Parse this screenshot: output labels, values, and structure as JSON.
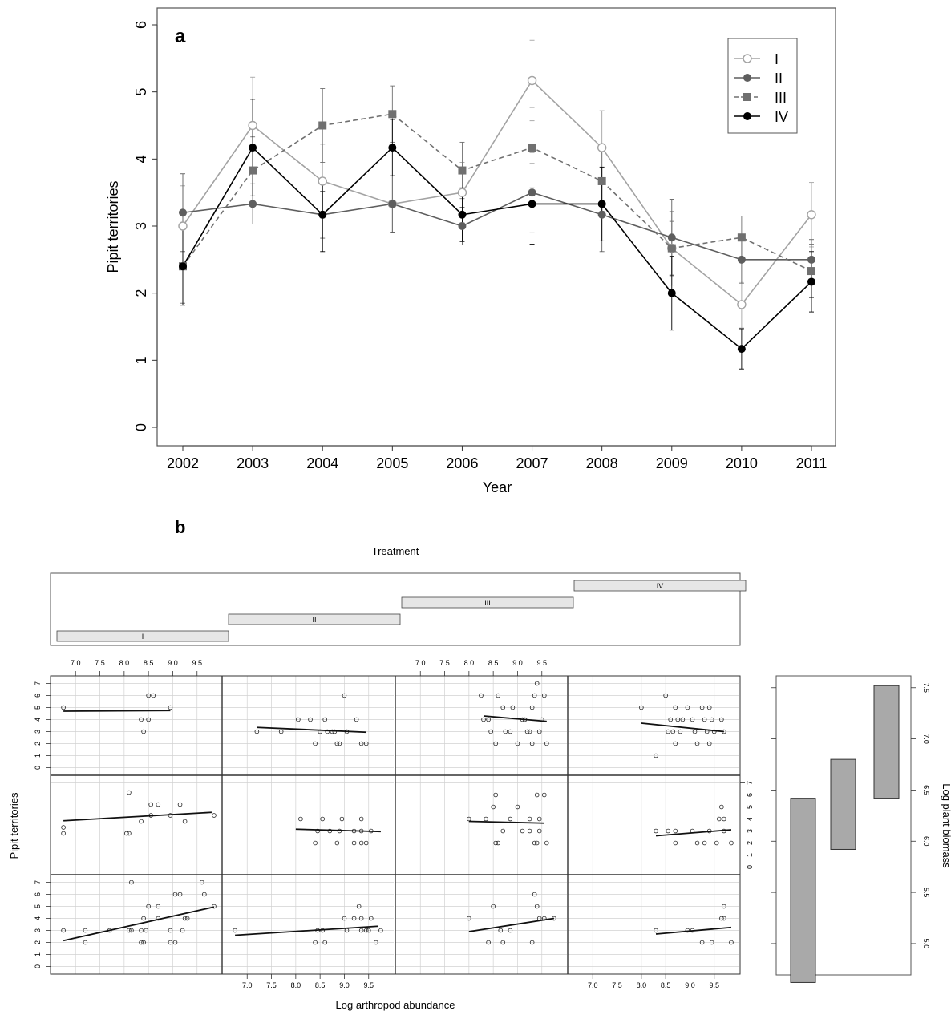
{
  "panel_a": {
    "label": "a"
  },
  "panel_b": {
    "label": "b"
  },
  "chart_data": [
    {
      "type": "line",
      "xlabel": "Year",
      "ylabel": "Pipit territories",
      "x": [
        2002,
        2003,
        2004,
        2005,
        2006,
        2007,
        2008,
        2009,
        2010,
        2011
      ],
      "xlim": [
        2002,
        2011
      ],
      "ylim": [
        0,
        6
      ],
      "yticks": [
        0,
        1,
        2,
        3,
        4,
        5,
        6
      ],
      "legend_position": "top-right",
      "series": [
        {
          "name": "I",
          "color": "#a3a3a3",
          "marker": "open-circle",
          "line": "solid",
          "values": [
            3.0,
            4.5,
            3.67,
            3.33,
            3.5,
            5.17,
            4.17,
            2.67,
            1.83,
            3.17
          ],
          "err": [
            0.6,
            0.72,
            0.55,
            0.42,
            0.45,
            0.6,
            0.55,
            0.55,
            0.35,
            0.48
          ]
        },
        {
          "name": "II",
          "color": "#5e5e5e",
          "marker": "filled-circle",
          "line": "solid",
          "values": [
            3.2,
            3.33,
            3.17,
            3.33,
            3.0,
            3.5,
            3.17,
            2.83,
            2.5,
            2.5
          ],
          "err": [
            0.58,
            0.3,
            0.35,
            0.42,
            0.28,
            0.6,
            0.55,
            0.57,
            0.35,
            0.3
          ]
        },
        {
          "name": "III",
          "color": "#707070",
          "marker": "filled-square",
          "line": "dashed",
          "values": [
            2.4,
            3.83,
            4.5,
            4.67,
            3.83,
            4.17,
            3.67,
            2.67,
            2.83,
            2.33
          ],
          "err": [
            0.55,
            0.5,
            0.55,
            0.42,
            0.42,
            0.6,
            0.45,
            0.4,
            0.32,
            0.4
          ]
        },
        {
          "name": "IV",
          "color": "#000000",
          "marker": "filled-circle",
          "line": "solid",
          "values": [
            2.4,
            4.17,
            3.17,
            4.17,
            3.17,
            3.33,
            3.33,
            2.0,
            1.17,
            2.17
          ],
          "err": [
            0.58,
            0.72,
            0.55,
            0.42,
            0.4,
            0.6,
            0.55,
            0.55,
            0.3,
            0.45
          ]
        }
      ]
    },
    {
      "type": "scatter",
      "title": "Treatment",
      "xlabel": "Log arthropod abundance",
      "ylabel": "Pipit territories",
      "right_label": "Log plant biomass",
      "treatments": [
        "I",
        "II",
        "III",
        "IV"
      ],
      "xlim": [
        6.6,
        9.9
      ],
      "xticks": [
        7.0,
        7.5,
        8.0,
        8.5,
        9.0,
        9.5
      ],
      "ylim": [
        -0.5,
        7.5
      ],
      "yticks": [
        0,
        1,
        2,
        3,
        4,
        5,
        6,
        7
      ],
      "biomass_ylim": [
        4.6,
        7.6
      ],
      "biomass_ticks": [
        5.0,
        5.5,
        6.0,
        6.5,
        7.0,
        7.5
      ],
      "biomass_ranges": [
        {
          "name": "low",
          "range": [
            4.62,
            6.42
          ]
        },
        {
          "name": "mid",
          "range": [
            5.92,
            6.8
          ]
        },
        {
          "name": "high",
          "range": [
            6.42,
            7.52
          ]
        }
      ],
      "panels": [
        {
          "row": 0,
          "col": 0,
          "points": [
            [
              6.75,
              5
            ],
            [
              8.5,
              6
            ],
            [
              8.6,
              6
            ],
            [
              8.35,
              4
            ],
            [
              8.5,
              4
            ],
            [
              8.4,
              3
            ],
            [
              8.95,
              5
            ]
          ],
          "line": [
            [
              6.75,
              4.7
            ],
            [
              8.95,
              4.75
            ]
          ]
        },
        {
          "row": 0,
          "col": 1,
          "points": [
            [
              7.2,
              3
            ],
            [
              7.7,
              3
            ],
            [
              8.05,
              4
            ],
            [
              8.3,
              4
            ],
            [
              8.6,
              4
            ],
            [
              9.0,
              6
            ],
            [
              8.5,
              3
            ],
            [
              8.65,
              3
            ],
            [
              8.75,
              3
            ],
            [
              8.8,
              3
            ],
            [
              9.05,
              3
            ],
            [
              9.25,
              4
            ],
            [
              8.4,
              2
            ],
            [
              8.85,
              2
            ],
            [
              8.9,
              2
            ],
            [
              9.35,
              2
            ],
            [
              9.45,
              2
            ]
          ],
          "line": [
            [
              7.2,
              3.35
            ],
            [
              9.45,
              2.95
            ]
          ]
        },
        {
          "row": 0,
          "col": 2,
          "points": [
            [
              8.25,
              6
            ],
            [
              8.6,
              6
            ],
            [
              9.4,
              7
            ],
            [
              9.55,
              6
            ],
            [
              8.7,
              5
            ],
            [
              8.9,
              5
            ],
            [
              9.3,
              5
            ],
            [
              9.35,
              6
            ],
            [
              8.3,
              4
            ],
            [
              8.4,
              4
            ],
            [
              9.1,
              4
            ],
            [
              9.15,
              4
            ],
            [
              9.5,
              4
            ],
            [
              8.45,
              3
            ],
            [
              8.75,
              3
            ],
            [
              8.85,
              3
            ],
            [
              9.2,
              3
            ],
            [
              9.25,
              3
            ],
            [
              9.45,
              3
            ],
            [
              8.55,
              2
            ],
            [
              9.0,
              2
            ],
            [
              9.3,
              2
            ],
            [
              9.6,
              2
            ]
          ],
          "line": [
            [
              8.3,
              4.3
            ],
            [
              9.6,
              3.85
            ]
          ]
        },
        {
          "row": 0,
          "col": 3,
          "points": [
            [
              8.0,
              5
            ],
            [
              8.5,
              6
            ],
            [
              8.7,
              5
            ],
            [
              8.95,
              5
            ],
            [
              9.25,
              5
            ],
            [
              9.4,
              5
            ],
            [
              8.6,
              4
            ],
            [
              8.75,
              4
            ],
            [
              8.85,
              4
            ],
            [
              9.05,
              4
            ],
            [
              9.3,
              4
            ],
            [
              9.45,
              4
            ],
            [
              9.65,
              4
            ],
            [
              8.55,
              3
            ],
            [
              8.65,
              3
            ],
            [
              8.8,
              3
            ],
            [
              9.1,
              3
            ],
            [
              9.35,
              3
            ],
            [
              9.5,
              3
            ],
            [
              9.7,
              3
            ],
            [
              8.7,
              2
            ],
            [
              9.15,
              2
            ],
            [
              9.4,
              2
            ],
            [
              8.3,
              1
            ]
          ],
          "line": [
            [
              8.0,
              3.7
            ],
            [
              9.7,
              3.0
            ]
          ]
        },
        {
          "row": 1,
          "col": 0,
          "points": [
            [
              6.75,
              3.3
            ],
            [
              8.1,
              6.2
            ],
            [
              8.55,
              5.2
            ],
            [
              8.7,
              5.2
            ],
            [
              9.15,
              5.2
            ],
            [
              8.55,
              4.3
            ],
            [
              8.95,
              4.3
            ],
            [
              9.85,
              4.3
            ],
            [
              8.35,
              3.8
            ],
            [
              9.25,
              3.8
            ],
            [
              6.75,
              2.8
            ],
            [
              8.05,
              2.8
            ],
            [
              8.1,
              2.8
            ]
          ],
          "line": [
            [
              6.75,
              3.85
            ],
            [
              9.8,
              4.55
            ]
          ]
        },
        {
          "row": 1,
          "col": 1,
          "points": [
            [
              8.1,
              4
            ],
            [
              8.55,
              4
            ],
            [
              8.95,
              4
            ],
            [
              9.35,
              4
            ],
            [
              8.45,
              3
            ],
            [
              8.7,
              3
            ],
            [
              8.9,
              3
            ],
            [
              9.2,
              3
            ],
            [
              9.35,
              3
            ],
            [
              9.55,
              3
            ],
            [
              8.4,
              2
            ],
            [
              8.85,
              2
            ],
            [
              9.2,
              2
            ],
            [
              9.45,
              2
            ],
            [
              9.35,
              2
            ]
          ],
          "line": [
            [
              8.0,
              3.15
            ],
            [
              9.75,
              2.95
            ]
          ]
        },
        {
          "row": 1,
          "col": 2,
          "points": [
            [
              8.0,
              4
            ],
            [
              8.55,
              6
            ],
            [
              8.5,
              5
            ],
            [
              9.0,
              5
            ],
            [
              9.4,
              6
            ],
            [
              9.55,
              6
            ],
            [
              8.35,
              4
            ],
            [
              8.85,
              4
            ],
            [
              9.25,
              4
            ],
            [
              9.45,
              4
            ],
            [
              8.7,
              3
            ],
            [
              9.1,
              3
            ],
            [
              9.25,
              3
            ],
            [
              9.45,
              3
            ],
            [
              8.6,
              2
            ],
            [
              8.55,
              2
            ],
            [
              9.35,
              2
            ],
            [
              9.4,
              2
            ],
            [
              9.6,
              2
            ]
          ],
          "line": [
            [
              8.0,
              3.8
            ],
            [
              9.55,
              3.65
            ]
          ]
        },
        {
          "row": 1,
          "col": 3,
          "points": [
            [
              8.3,
              3
            ],
            [
              8.55,
              3
            ],
            [
              8.7,
              3
            ],
            [
              9.05,
              3
            ],
            [
              9.4,
              3
            ],
            [
              9.6,
              4
            ],
            [
              9.7,
              4
            ],
            [
              9.65,
              5
            ],
            [
              8.7,
              2
            ],
            [
              9.15,
              2
            ],
            [
              9.3,
              2
            ],
            [
              9.55,
              2
            ],
            [
              9.7,
              3
            ],
            [
              9.85,
              2
            ]
          ],
          "line": [
            [
              8.3,
              2.6
            ],
            [
              9.85,
              3.1
            ]
          ]
        },
        {
          "row": 2,
          "col": 0,
          "points": [
            [
              6.75,
              3
            ],
            [
              7.2,
              3
            ],
            [
              7.2,
              2
            ],
            [
              7.7,
              3
            ],
            [
              8.1,
              3
            ],
            [
              8.15,
              3
            ],
            [
              8.15,
              7
            ],
            [
              8.4,
              4
            ],
            [
              8.35,
              3
            ],
            [
              8.45,
              3
            ],
            [
              8.5,
              5
            ],
            [
              8.7,
              5
            ],
            [
              8.7,
              4
            ],
            [
              9.05,
              6
            ],
            [
              9.15,
              6
            ],
            [
              9.25,
              4
            ],
            [
              9.3,
              4
            ],
            [
              9.2,
              3
            ],
            [
              8.95,
              3
            ],
            [
              8.95,
              2
            ],
            [
              9.05,
              2
            ],
            [
              9.65,
              6
            ],
            [
              9.6,
              7
            ],
            [
              9.85,
              5
            ],
            [
              8.35,
              2
            ],
            [
              8.4,
              2
            ]
          ],
          "line": [
            [
              6.75,
              2.15
            ],
            [
              9.85,
              4.95
            ]
          ]
        },
        {
          "row": 2,
          "col": 1,
          "points": [
            [
              6.75,
              3
            ],
            [
              8.4,
              2
            ],
            [
              8.6,
              2
            ],
            [
              8.45,
              3
            ],
            [
              8.55,
              3
            ],
            [
              9.0,
              4
            ],
            [
              9.2,
              4
            ],
            [
              9.35,
              4
            ],
            [
              9.55,
              4
            ],
            [
              9.05,
              3
            ],
            [
              9.3,
              5
            ],
            [
              9.35,
              3
            ],
            [
              9.45,
              3
            ],
            [
              9.5,
              3
            ],
            [
              9.75,
              3
            ],
            [
              9.65,
              2
            ]
          ],
          "line": [
            [
              6.75,
              2.6
            ],
            [
              9.7,
              3.35
            ]
          ]
        },
        {
          "row": 2,
          "col": 2,
          "points": [
            [
              8.0,
              4
            ],
            [
              8.5,
              5
            ],
            [
              8.4,
              2
            ],
            [
              8.7,
              2
            ],
            [
              8.65,
              3
            ],
            [
              8.85,
              3
            ],
            [
              9.35,
              6
            ],
            [
              9.4,
              5
            ],
            [
              9.45,
              4
            ],
            [
              9.55,
              4
            ],
            [
              9.3,
              2
            ],
            [
              9.75,
              4
            ]
          ],
          "line": [
            [
              8.0,
              2.9
            ],
            [
              9.75,
              4.0
            ]
          ]
        },
        {
          "row": 2,
          "col": 3,
          "points": [
            [
              8.3,
              3
            ],
            [
              8.95,
              3
            ],
            [
              9.05,
              3
            ],
            [
              9.25,
              2
            ],
            [
              9.45,
              2
            ],
            [
              9.65,
              4
            ],
            [
              9.7,
              5
            ],
            [
              9.7,
              4
            ],
            [
              9.85,
              2
            ]
          ],
          "line": [
            [
              8.3,
              2.7
            ],
            [
              9.85,
              3.25
            ]
          ]
        }
      ]
    }
  ]
}
